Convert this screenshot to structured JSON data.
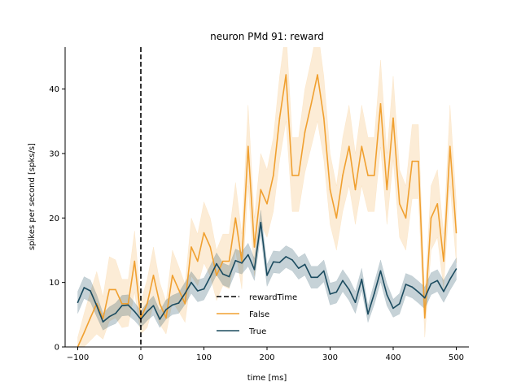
{
  "chart_data": {
    "type": "line",
    "title": "neuron PMd 91: reward",
    "xlabel": "time [ms]",
    "ylabel": "spikes per second [spks/s]",
    "xlim": [
      -120,
      520
    ],
    "ylim": [
      0,
      46.5
    ],
    "xticks": [
      -100,
      0,
      100,
      200,
      300,
      400,
      500
    ],
    "yticks": [
      0,
      10,
      20,
      30,
      40
    ],
    "grid": false,
    "legend_placement": "lower-center",
    "event_line": {
      "name": "rewardTime",
      "x": 0,
      "style": "dashed",
      "color": "#000000"
    },
    "x": [
      -100,
      -90,
      -80,
      -70,
      -60,
      -50,
      -40,
      -30,
      -20,
      -10,
      0,
      10,
      20,
      30,
      40,
      50,
      60,
      70,
      80,
      90,
      100,
      110,
      120,
      130,
      140,
      150,
      160,
      170,
      180,
      190,
      200,
      210,
      220,
      230,
      240,
      250,
      260,
      270,
      280,
      290,
      300,
      310,
      320,
      330,
      340,
      350,
      360,
      370,
      380,
      390,
      400,
      410,
      420,
      430,
      440,
      450,
      460,
      470,
      480,
      490,
      500
    ],
    "series": [
      {
        "name": "False",
        "color": "#f0a030",
        "values": [
          0,
          2.2,
          4.5,
          6.7,
          4.4,
          8.9,
          8.9,
          6.7,
          6.7,
          13.3,
          4.5,
          6.7,
          11.1,
          6.7,
          4.5,
          11.1,
          8.9,
          6.7,
          15.5,
          13.3,
          17.7,
          15.5,
          11.1,
          13.3,
          13.3,
          20,
          13.3,
          31.1,
          15.5,
          24.4,
          22.2,
          26.6,
          35.5,
          42.2,
          26.6,
          26.6,
          33.3,
          37.7,
          42.2,
          35.5,
          24.4,
          20,
          26.6,
          31.1,
          24.4,
          31.1,
          26.6,
          26.6,
          37.7,
          24.4,
          35.5,
          22.2,
          20,
          28.8,
          28.8,
          4.5,
          20,
          22.2,
          13.3,
          31.1,
          17.7
        ],
        "band_lower": [
          0,
          0,
          1,
          2,
          1.2,
          4,
          4.5,
          3,
          3.2,
          8.5,
          2,
          3,
          6.5,
          3.5,
          2,
          7,
          5.5,
          3.8,
          11,
          9.5,
          13,
          11,
          7.2,
          9.5,
          9,
          15,
          9,
          25,
          11,
          19,
          17,
          21,
          29,
          35,
          21,
          21,
          27,
          31,
          35,
          29,
          19,
          15,
          21,
          25,
          19,
          25,
          21,
          21,
          31,
          19,
          29,
          17,
          15,
          23,
          23,
          1.5,
          15,
          17,
          9,
          25,
          13
        ],
        "band_upper": [
          1.5,
          5.2,
          8.5,
          11.7,
          7.8,
          14,
          13.5,
          10.5,
          10.5,
          18,
          7,
          10.5,
          15.5,
          10,
          7,
          15,
          12.5,
          9.7,
          20,
          17.5,
          22.5,
          20,
          15,
          17.5,
          17.5,
          25.5,
          17.5,
          37.5,
          20,
          30,
          27.5,
          32.5,
          42,
          49.5,
          32.5,
          32.5,
          40,
          44.5,
          49.5,
          42,
          30,
          25,
          32.5,
          37.5,
          30,
          37.5,
          32.5,
          32.5,
          44.5,
          30,
          42,
          27.5,
          25,
          34.5,
          34.5,
          8,
          25,
          27.5,
          17.5,
          37.5,
          22.5
        ]
      },
      {
        "name": "True",
        "color": "#1b4b5f",
        "values": [
          6.9,
          9.2,
          8.7,
          6.4,
          3.9,
          4.7,
          5.2,
          6.4,
          6.5,
          5.5,
          4.3,
          5.5,
          6.4,
          4.3,
          5.8,
          6.5,
          6.8,
          8.3,
          10,
          8.7,
          9,
          10.9,
          12.9,
          11.3,
          10.9,
          13.4,
          13,
          14.3,
          12,
          19.3,
          11.1,
          13.2,
          13.1,
          14,
          13.5,
          12.2,
          12.8,
          10.8,
          10.8,
          11.8,
          8.2,
          8.5,
          10.3,
          8.9,
          6.9,
          10.5,
          5.1,
          8.3,
          11.8,
          8.1,
          6,
          6.7,
          9.7,
          9.3,
          8.5,
          7.6,
          9.8,
          10.3,
          8.6,
          10.5,
          12.1
        ],
        "band_lower": [
          5.2,
          7.5,
          7,
          4.7,
          2.6,
          3.2,
          3.6,
          4.8,
          4.9,
          4.1,
          3,
          4.1,
          4.9,
          3,
          4.3,
          5,
          5.2,
          6.6,
          8.3,
          7,
          7.3,
          9.2,
          11.2,
          9.6,
          9.2,
          11.6,
          11.3,
          12.5,
          10.3,
          17.4,
          9.4,
          11.5,
          11.4,
          12.3,
          11.8,
          10.5,
          11.1,
          9.1,
          9.1,
          10.1,
          6.5,
          6.8,
          8.6,
          7.2,
          5.2,
          8.8,
          3.8,
          6.6,
          10.1,
          6.4,
          4.6,
          5.1,
          8,
          7.6,
          6.8,
          5.9,
          8.1,
          8.6,
          6.9,
          8.8,
          10.4
        ],
        "band_upper": [
          8.6,
          10.9,
          10.4,
          8.1,
          5.2,
          6.2,
          6.8,
          8,
          8.1,
          6.9,
          5.6,
          6.9,
          7.9,
          5.6,
          7.3,
          8,
          8.4,
          10,
          11.7,
          10.4,
          10.7,
          12.6,
          14.6,
          13,
          12.6,
          15.2,
          14.7,
          16.1,
          13.7,
          21.2,
          12.8,
          14.9,
          14.8,
          15.7,
          15.2,
          13.9,
          14.5,
          12.5,
          12.5,
          13.5,
          9.9,
          10.2,
          12,
          10.6,
          8.6,
          12.2,
          6.4,
          10,
          13.5,
          9.8,
          7.4,
          8.3,
          11.4,
          11,
          10.2,
          9.3,
          11.5,
          12,
          10.3,
          12.2,
          13.8
        ]
      }
    ]
  }
}
